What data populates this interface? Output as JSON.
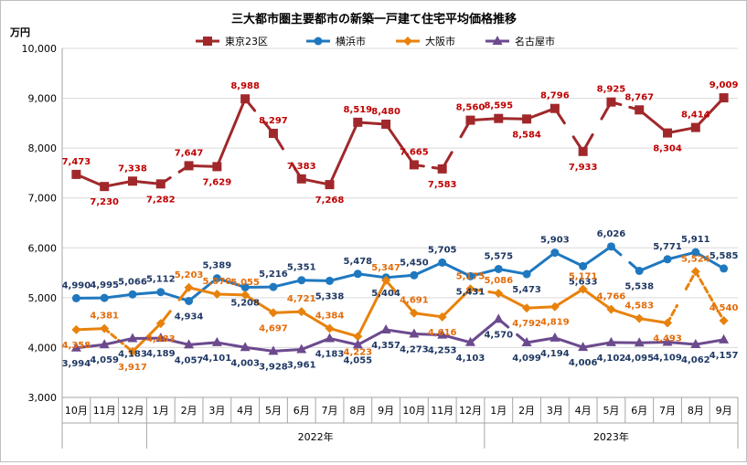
{
  "chart_data": {
    "type": "line",
    "title": "三大都市圏主要都市の新築一戸建て住宅平均価格推移",
    "ylabel": "万円",
    "ylim": [
      3000,
      10000
    ],
    "yticks": [
      "3,000",
      "4,000",
      "5,000",
      "6,000",
      "7,000",
      "8,000",
      "9,000",
      "10,000"
    ],
    "categories": [
      "10月",
      "11月",
      "12月",
      "1月",
      "2月",
      "3月",
      "4月",
      "5月",
      "6月",
      "7月",
      "8月",
      "9月",
      "10月",
      "11月",
      "12月",
      "1月",
      "2月",
      "3月",
      "4月",
      "5月",
      "6月",
      "7月",
      "8月",
      "9月"
    ],
    "year_labels": [
      {
        "label": "2022年",
        "start": 3,
        "end": 14
      },
      {
        "label": "2023年",
        "start": 15,
        "end": 23
      }
    ],
    "legend_position": "top",
    "series": [
      {
        "name": "東京23区",
        "color": "#a0282b",
        "marker": "square",
        "values": [
          7473,
          7230,
          7338,
          7282,
          7647,
          7629,
          8988,
          8297,
          7383,
          7268,
          8519,
          8480,
          7665,
          7583,
          8560,
          8595,
          8584,
          8796,
          7933,
          8925,
          8767,
          8304,
          8414,
          9009
        ],
        "labels": [
          "7,473",
          "7,230",
          "7,338",
          "7,282",
          "7,647",
          "7,629",
          "8,988",
          "8,297",
          "7,383",
          "7,268",
          "8,519",
          "8,480",
          "7,665",
          "7,583",
          "8,560",
          "8,595",
          "8,584",
          "8,796",
          "7,933",
          "8,925",
          "8,767",
          "8,304",
          "8,414",
          "9,009"
        ],
        "gaps_after": [
          3,
          6,
          7,
          12,
          13,
          17,
          18,
          19
        ],
        "label_color": "#c00000"
      },
      {
        "name": "横浜市",
        "color": "#1f78bf",
        "marker": "circle",
        "values": [
          4990,
          4995,
          5066,
          5112,
          4934,
          5389,
          5208,
          5216,
          5351,
          5338,
          5478,
          5404,
          5450,
          5705,
          5431,
          5575,
          5473,
          5903,
          5633,
          6026,
          5538,
          5771,
          5911,
          5585
        ],
        "labels": [
          "4,990",
          "4,995",
          "5,066",
          "5,112",
          "4,934",
          "5,389",
          "5,208",
          "5,216",
          "5,351",
          "5,338",
          "5,478",
          "5,404",
          "5,450",
          "5,705",
          "5,431",
          "5,575",
          "5,473",
          "5,903",
          "5,633",
          "6,026",
          "5,538",
          "5,771",
          "5,911",
          "5,585"
        ],
        "gaps_after": [
          19
        ],
        "label_color": "#1f3864"
      },
      {
        "name": "大阪市",
        "color": "#e8820c",
        "marker": "diamond",
        "values": [
          4358,
          4381,
          3917,
          4483,
          5203,
          5070,
          5055,
          4697,
          4721,
          4384,
          4223,
          5347,
          4691,
          4616,
          5175,
          5086,
          4792,
          4819,
          5171,
          4766,
          4583,
          4493,
          5524,
          4540
        ],
        "labels": [
          "4,358",
          "4,381",
          "3,917",
          "4,483",
          "5,203",
          "5,070",
          "5,055",
          "4,697",
          "4,721",
          "4,384",
          "4,223",
          "5,347",
          "4,691",
          "4,616",
          "5,175",
          "5,086",
          "4,792",
          "4,819",
          "5,171",
          "4,766",
          "4,583",
          "4,493",
          "5,524",
          "4,540"
        ],
        "gaps_after": [
          3,
          11,
          14,
          21
        ],
        "dashed_after": [
          1,
          21,
          22
        ],
        "label_color": "#e36c09"
      },
      {
        "name": "名古屋市",
        "color": "#6c4a8e",
        "marker": "triangle",
        "values": [
          3994,
          4059,
          4183,
          4189,
          4057,
          4101,
          4003,
          3928,
          3961,
          4183,
          4055,
          4357,
          4273,
          4253,
          4103,
          4570,
          4099,
          4194,
          4006,
          4102,
          4095,
          4109,
          4062,
          4157
        ],
        "labels": [
          "3,994",
          "4,059",
          "4,183",
          "4,189",
          "4,057",
          "4,101",
          "4,003",
          "3,928",
          "3,961",
          "4,183",
          "4,055",
          "4,357",
          "4,273",
          "4,253",
          "4,103",
          "4,570",
          "4,099",
          "4,194",
          "4,006",
          "4,102",
          "4,095",
          "4,109",
          "4,062",
          "4,157"
        ],
        "gaps_after": [
          15
        ],
        "label_color": "#1f3864"
      }
    ]
  }
}
